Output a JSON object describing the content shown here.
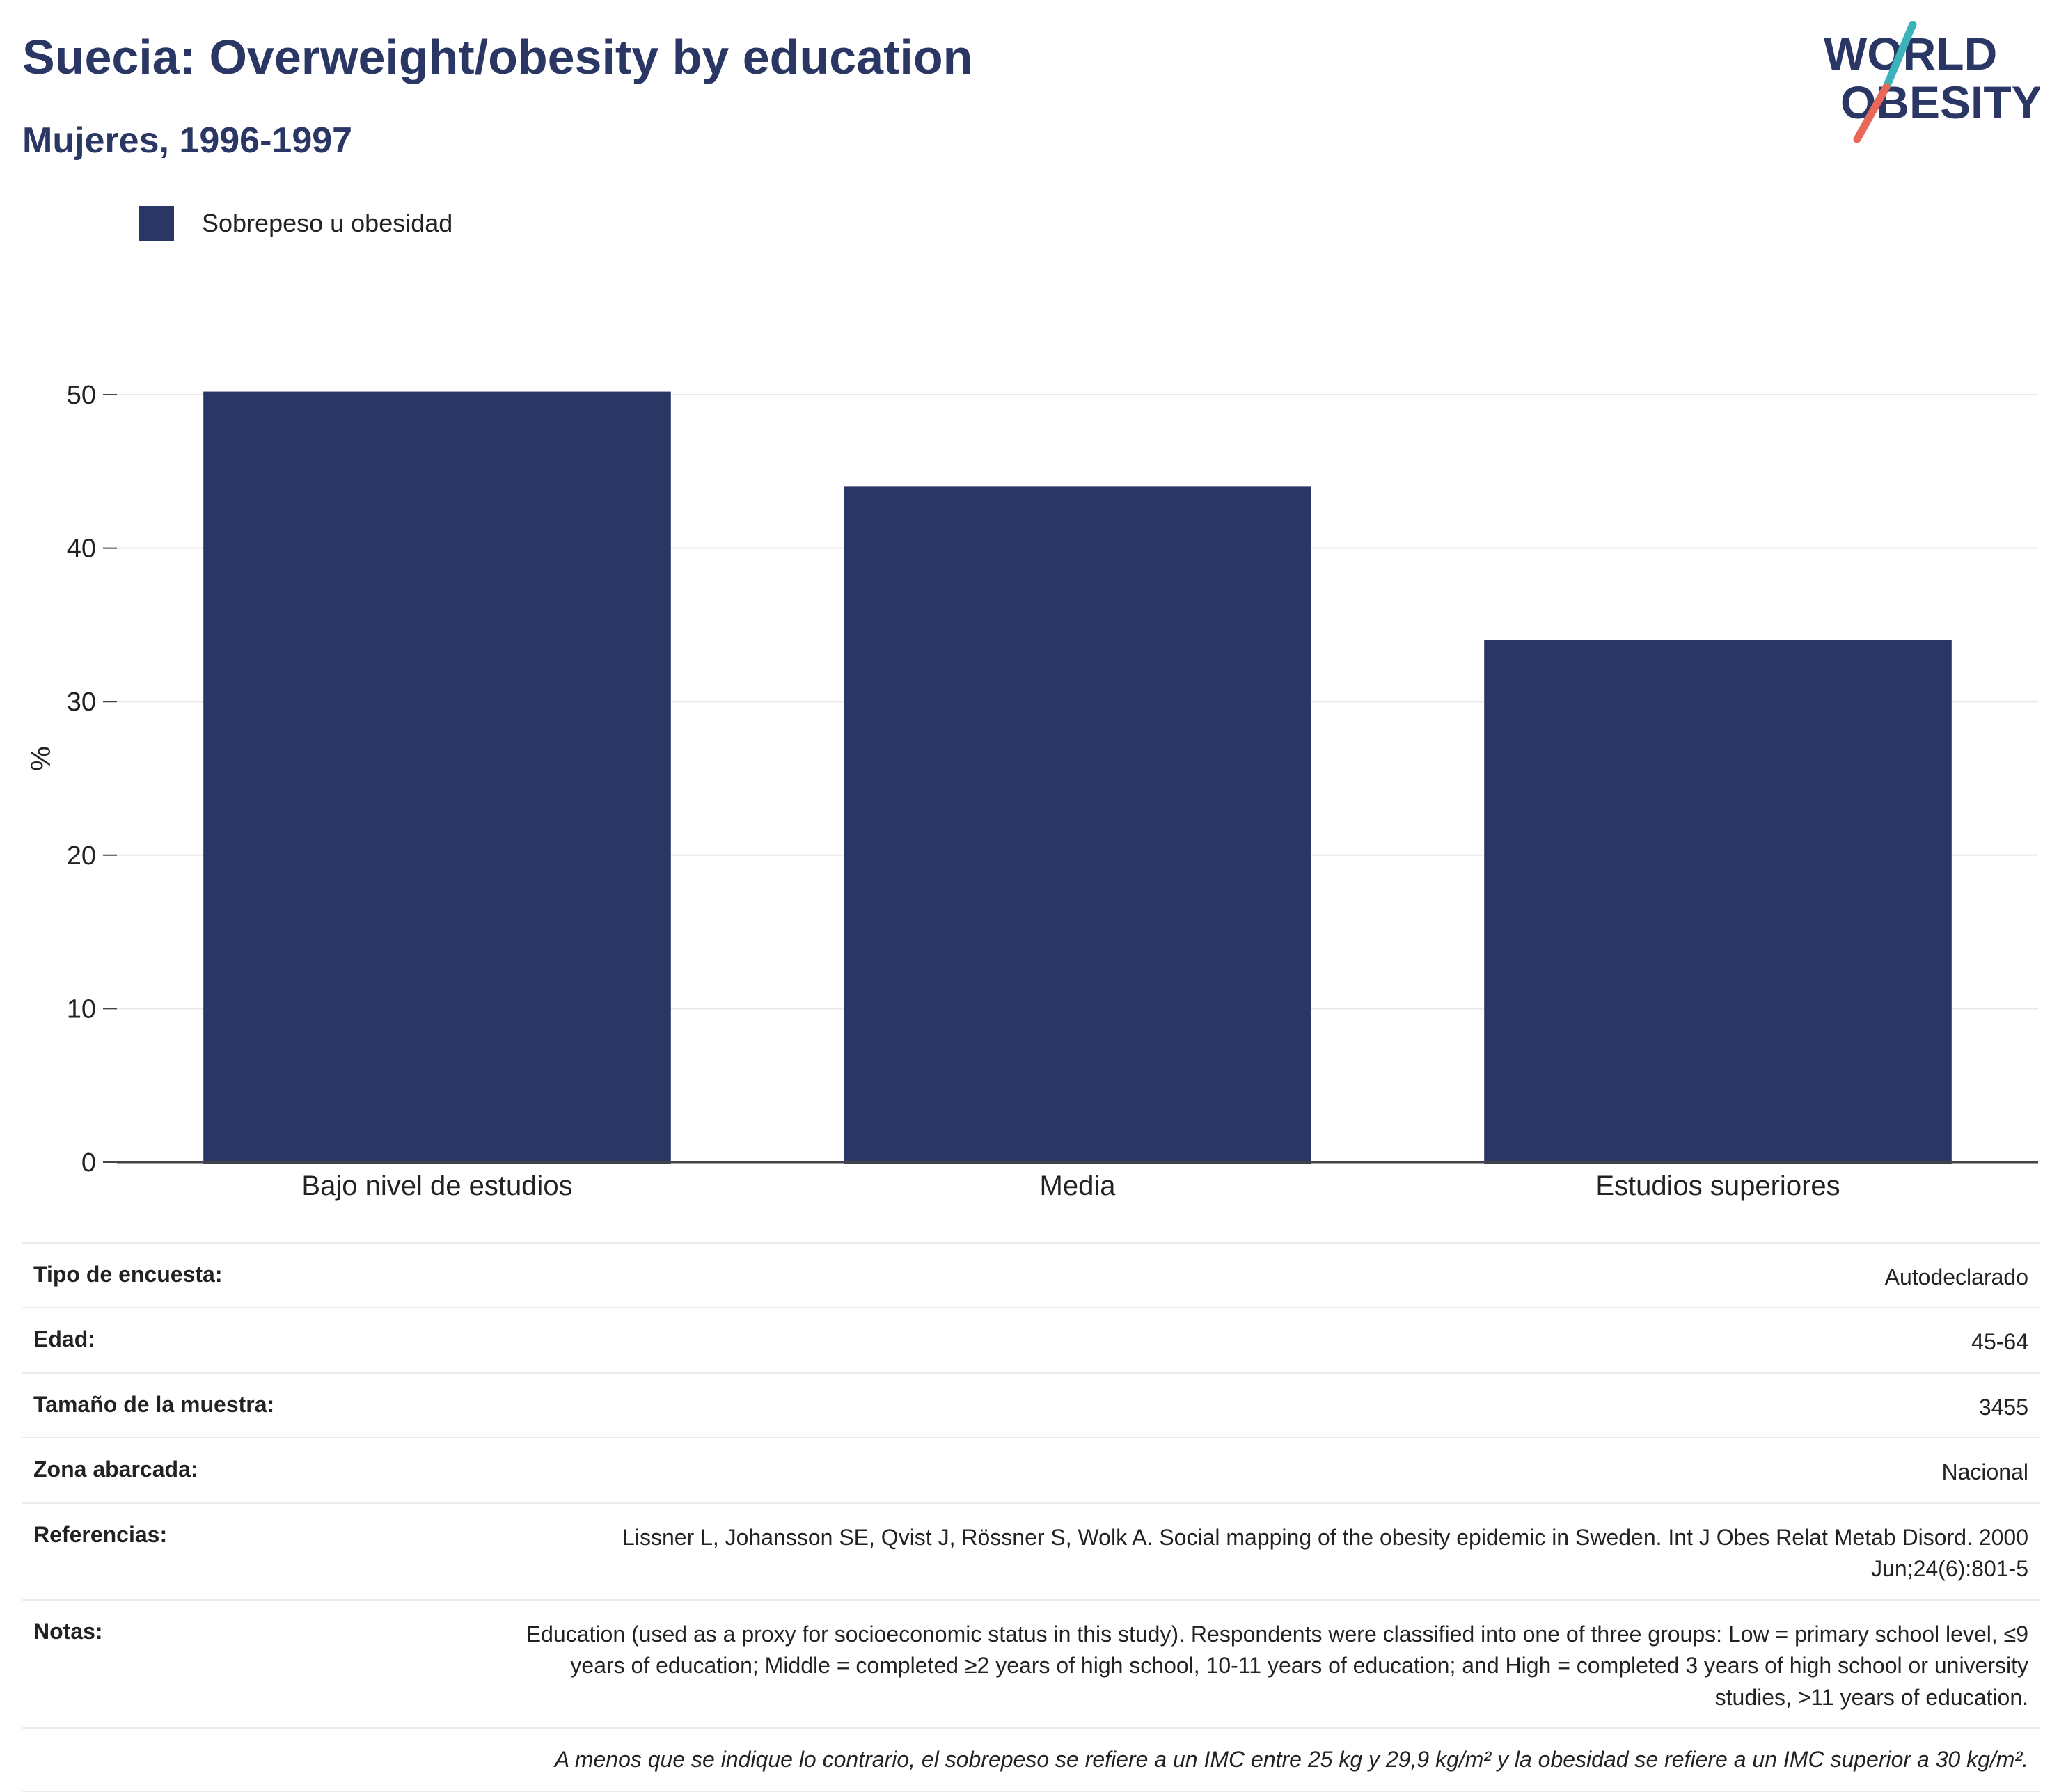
{
  "header": {
    "title": "Suecia: Overweight/obesity by education",
    "subtitle": "Mujeres, 1996-1997"
  },
  "logo": {
    "line1": "WORLD",
    "line2": "OBESITY"
  },
  "legend": {
    "label": "Sobrepeso u obesidad"
  },
  "colors": {
    "bar": "#2a3663",
    "title": "#2a3663",
    "logo_teal": "#3bb3b9",
    "logo_coral": "#e8685a"
  },
  "chart_data": {
    "type": "bar",
    "categories": [
      "Bajo nivel de estudios",
      "Media",
      "Estudios superiores"
    ],
    "series": [
      {
        "name": "Sobrepeso u obesidad",
        "values": [
          50.2,
          44.0,
          34.0
        ]
      }
    ],
    "ylabel": "%",
    "ylim": [
      0,
      50
    ],
    "yticks": [
      0,
      10,
      20,
      30,
      40,
      50
    ],
    "grid": true,
    "legend_position": "top-left"
  },
  "info": {
    "rows": [
      {
        "key": "Tipo de encuesta:",
        "value": "Autodeclarado"
      },
      {
        "key": "Edad:",
        "value": "45-64"
      },
      {
        "key": "Tamaño de la muestra:",
        "value": "3455"
      },
      {
        "key": "Zona abarcada:",
        "value": "Nacional"
      },
      {
        "key": "Referencias:",
        "value": "Lissner L, Johansson SE, Qvist J, Rössner S, Wolk A. Social mapping of the obesity epidemic in Sweden. Int J Obes Relat Metab Disord. 2000 Jun;24(6):801-5"
      },
      {
        "key": "Notas:",
        "value": "Education (used as a proxy for socioeconomic status in this study). Respondents were classified into one of three groups: Low = primary school level, ≤9 years of education; Middle = completed ≥2 years of high school, 10-11 years of education; and High = completed 3 years of high school or university studies, >11 years of education."
      }
    ],
    "footnote": "A menos que se indique lo contrario, el sobrepeso se refiere a un IMC entre 25 kg y 29,9 kg/m² y la obesidad se refiere a un IMC superior a 30 kg/m²."
  }
}
